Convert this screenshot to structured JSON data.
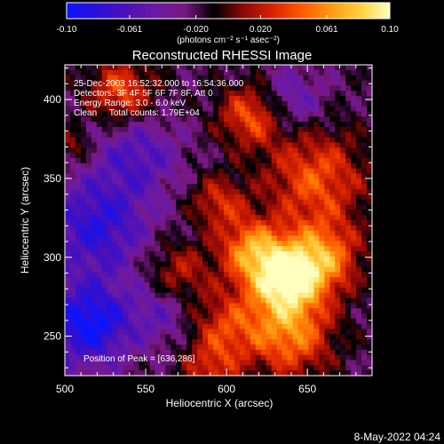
{
  "chart_data": {
    "type": "heatmap",
    "title": "Reconstructed RHESSI Image",
    "xlabel": "Heliocentric X (arcsec)",
    "ylabel": "Heliocentric Y (arcsec)",
    "xlim": [
      500,
      690
    ],
    "ylim": [
      225,
      422
    ],
    "x_ticks": [
      "500",
      "550",
      "600",
      "650"
    ],
    "x_tick_values": [
      500,
      550,
      600,
      650
    ],
    "y_ticks": [
      "250",
      "300",
      "350",
      "400"
    ],
    "y_tick_values": [
      250,
      300,
      350,
      400
    ],
    "colorbar": {
      "min": -0.1,
      "max": 0.1,
      "ticks": [
        "-0.10",
        "-0.061",
        "-0.020",
        "0.020",
        "0.061",
        "0.10"
      ],
      "tick_values": [
        -0.1,
        -0.061,
        -0.02,
        0.02,
        0.061,
        0.1
      ],
      "unit_label": "(photons cm⁻² s⁻¹ asec⁻²)",
      "colors": [
        "#0a14ff",
        "#2a10d8",
        "#4a10b8",
        "#6a1aa8",
        "#7a1880",
        "#000000",
        "#8a0808",
        "#d82200",
        "#ff5a00",
        "#ff9a10",
        "#ffd040",
        "#ffffc0"
      ]
    },
    "annotations": [
      "25-Dec-2003 16:52:32.000 to 16:54:36.000",
      "Detectors: 3F 4F 5F 6F 7F 8F, Att 0",
      "Energy Range: 3.0 - 6.0 keV",
      "Clean     Total counts: 1.79E+04"
    ],
    "peak_label": "Position of Peak = [636,286]",
    "peak": [
      636,
      286
    ],
    "footer_date": "8-May-2022 04:24",
    "sources": [
      {
        "x": 636,
        "y": 286,
        "amp": 0.11,
        "sigma": 16
      },
      {
        "x": 660,
        "y": 300,
        "amp": 0.07,
        "sigma": 16
      },
      {
        "x": 615,
        "y": 305,
        "amp": 0.07,
        "sigma": 14
      },
      {
        "x": 655,
        "y": 350,
        "amp": 0.06,
        "sigma": 22
      },
      {
        "x": 640,
        "y": 250,
        "amp": 0.07,
        "sigma": 18
      },
      {
        "x": 600,
        "y": 255,
        "amp": 0.05,
        "sigma": 16
      },
      {
        "x": 615,
        "y": 390,
        "amp": 0.06,
        "sigma": 14
      },
      {
        "x": 535,
        "y": 405,
        "amp": 0.06,
        "sigma": 14
      },
      {
        "x": 595,
        "y": 335,
        "amp": 0.045,
        "sigma": 12
      },
      {
        "x": 570,
        "y": 290,
        "amp": 0.04,
        "sigma": 14
      },
      {
        "x": 590,
        "y": 228,
        "amp": 0.04,
        "sigma": 12
      },
      {
        "x": 515,
        "y": 258,
        "amp": -0.08,
        "sigma": 18
      },
      {
        "x": 520,
        "y": 320,
        "amp": -0.06,
        "sigma": 22
      },
      {
        "x": 545,
        "y": 365,
        "amp": -0.04,
        "sigma": 18
      },
      {
        "x": 560,
        "y": 265,
        "amp": -0.03,
        "sigma": 14
      },
      {
        "x": 640,
        "y": 400,
        "amp": -0.035,
        "sigma": 14
      },
      {
        "x": 505,
        "y": 370,
        "amp": 0.03,
        "sigma": 8
      }
    ]
  }
}
